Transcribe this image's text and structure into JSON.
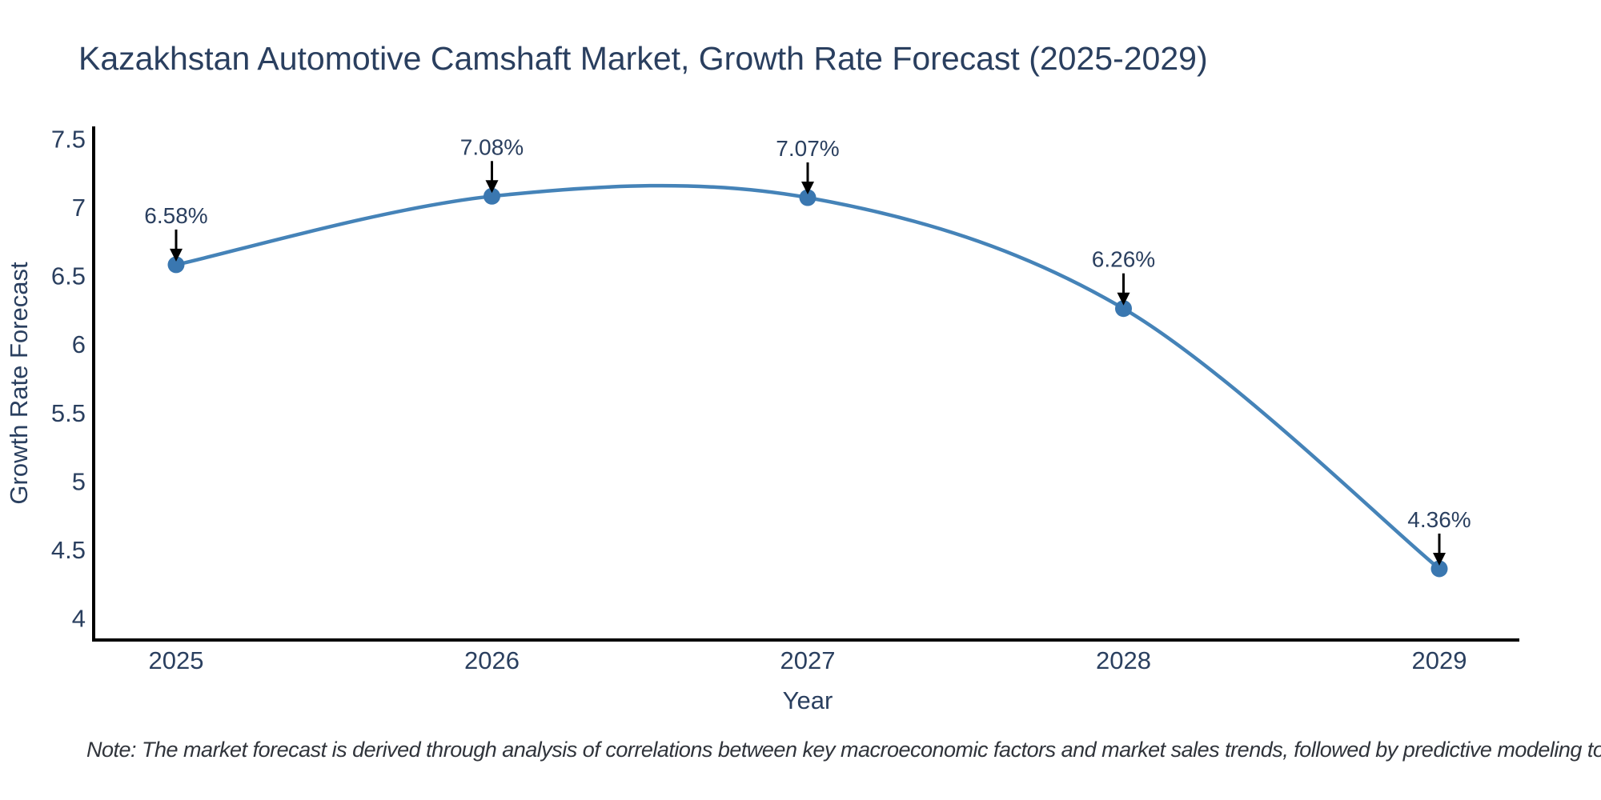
{
  "title": {
    "text": "Kazakhstan Automotive Camshaft Market, Growth Rate Forecast (2025-2029)",
    "color": "#2a3f5f"
  },
  "note": {
    "text": "Note: The market forecast is derived through analysis of correlations between key macroeconomic factors and market sales trends, followed by predictive modeling to project future sales",
    "color": "#30343b"
  },
  "chart_data": {
    "type": "line",
    "line_shape": "spline",
    "x": [
      2025,
      2026,
      2027,
      2028,
      2029
    ],
    "categories": [
      "2025",
      "2026",
      "2027",
      "2028",
      "2029"
    ],
    "series": [
      {
        "name": "Growth Rate Forecast",
        "values": [
          6.58,
          7.08,
          7.07,
          6.26,
          4.36
        ]
      }
    ],
    "point_labels": [
      "6.58%",
      "7.08%",
      "7.07%",
      "6.26%",
      "4.36%"
    ],
    "xlabel": "Year",
    "ylabel": "Growth Rate Forecast",
    "yticks": [
      "7.5",
      "7",
      "6.5",
      "6",
      "5.5",
      "5",
      "4.5",
      "4"
    ],
    "ytick_values": [
      7.5,
      7.0,
      6.5,
      6.0,
      5.5,
      5.0,
      4.5,
      4.0
    ],
    "ylim": [
      3.84,
      7.59
    ],
    "grid": false,
    "legend": "none",
    "annotations_have_arrows": true,
    "colors": {
      "line": "#4583b8",
      "marker": "#3a77b0",
      "axis": "#000000",
      "text": "#2a3f5f",
      "annotation_text": "#2a3f5f",
      "annotation_arrow": "#000000",
      "background": "#ffffff"
    }
  }
}
